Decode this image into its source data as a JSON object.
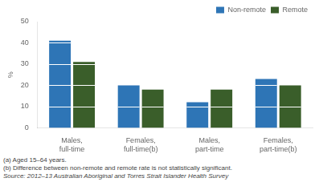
{
  "chart_data": {
    "type": "bar",
    "categories": [
      "Males,\nfull-time",
      "Females,\nfull-time(b)",
      "Males,\npart-time",
      "Females,\npart-time(b)"
    ],
    "series": [
      {
        "name": "Non-remote",
        "color": "#2E75B6",
        "values": [
          41,
          20,
          12,
          23
        ]
      },
      {
        "name": "Remote",
        "color": "#3A5E2A",
        "values": [
          31,
          18,
          18,
          20
        ]
      }
    ],
    "ylabel": "%",
    "ylim": [
      0,
      50
    ],
    "yticks": [
      0,
      10,
      20,
      30,
      40,
      50
    ],
    "grid": false,
    "legend": "upper right",
    "annotations": [
      "(a) Aged 15–64 years.",
      "(b) Difference between non-remote and remote rate is not statistically significant.",
      "Source:  2012–13 Australian Aboriginal and Torres Strait Islander Health Survey"
    ]
  }
}
